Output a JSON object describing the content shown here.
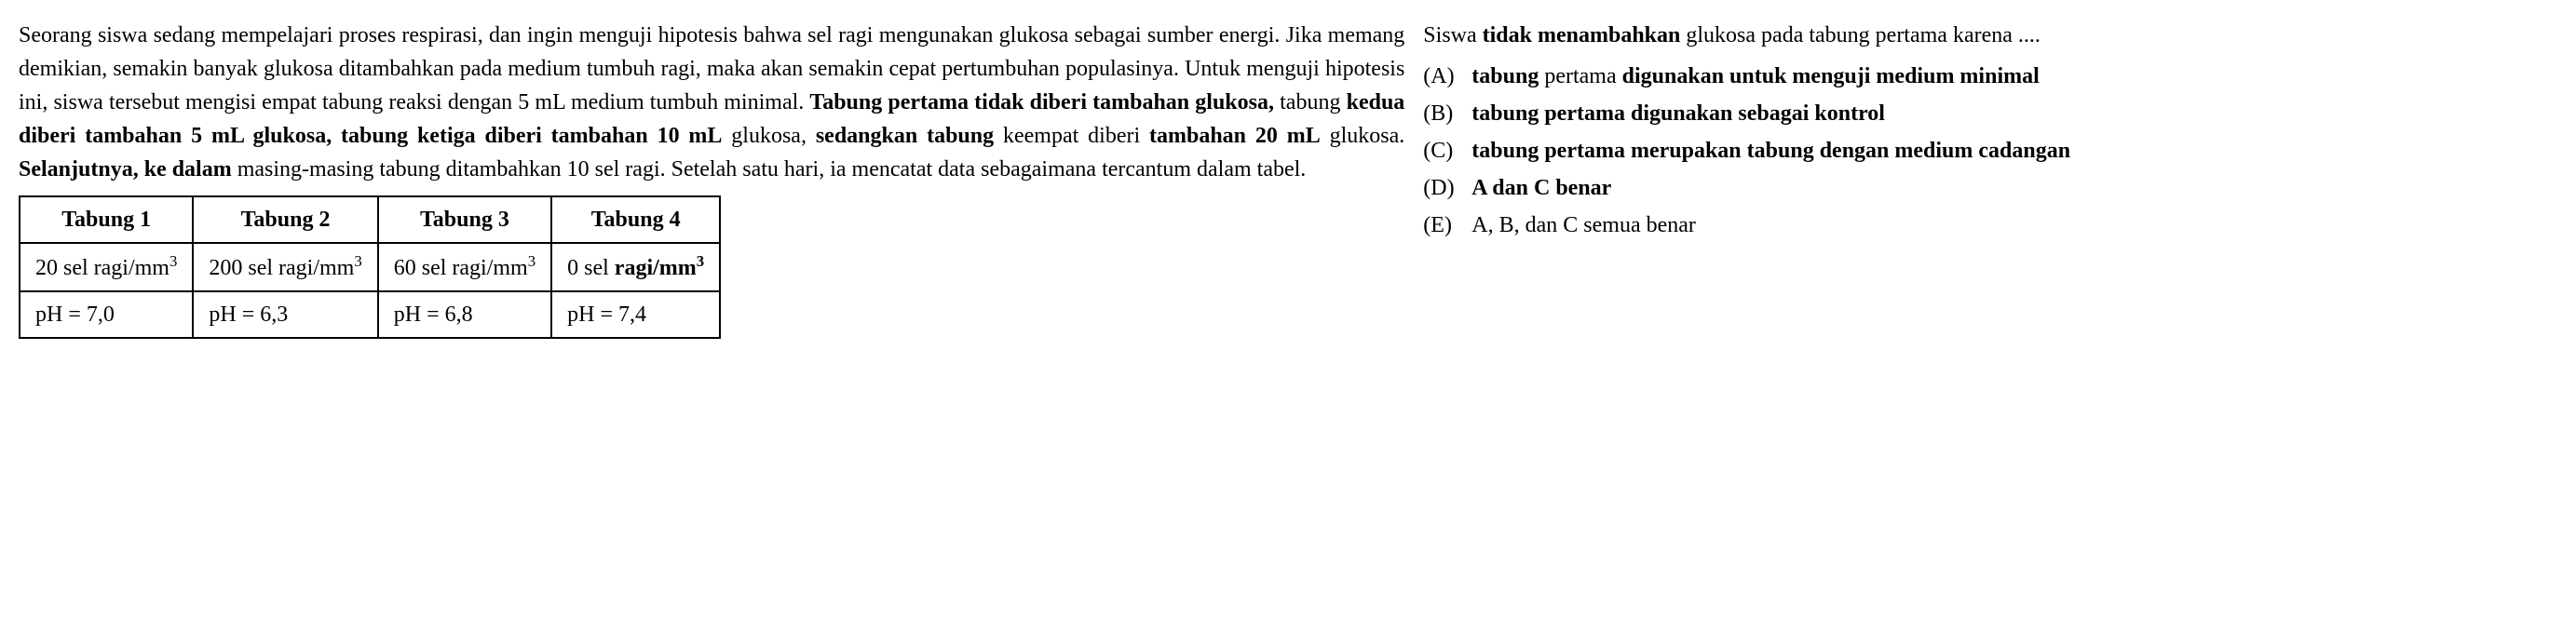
{
  "left": {
    "paragraph_html": "Seorang siswa sedang mempelajari proses respirasi, dan ingin menguji hipotesis bahwa sel ragi mengunakan glukosa sebagai sumber energi. Jika memang demikian, semakin banyak glukosa ditambahkan pada medium tumbuh ragi, maka akan semakin cepat pertumbuhan populasinya. Untuk menguji hipotesis ini, siswa tersebut mengisi empat tabung reaksi dengan 5 mL medium tumbuh minimal. <span class=\"bold\">Tabung pertama tidak diberi tambahan glukosa,</span> tabung <span class=\"bold\">kedua diberi tambahan 5 mL glukosa, tabung ketiga diberi tambahan 10 mL</span> glukosa, <span class=\"bold\">sedangkan tabung</span> keempat diberi <span class=\"bold\">tambahan 20 mL</span> glukosa. <span class=\"bold\">Selanjutnya, ke dalam</span> masing-masing tabung ditambahkan 10 sel ragi. Setelah satu hari, ia mencatat data sebagaimana tercantum dalam tabel."
  },
  "right": {
    "stem_html": "Siswa <span class=\"bold\">tidak menambahkan</span> glukosa pada tabung pertama karena ....",
    "options": [
      {
        "letter": "(A)",
        "text_html": "<span class=\"bold\">tabung</span> pertama <span class=\"bold\">digunakan untuk menguji medium minimal</span>"
      },
      {
        "letter": "(B)",
        "text_html": "<span class=\"bold\">tabung pertama digunakan sebagai kontrol</span>"
      },
      {
        "letter": "(C)",
        "text_html": "<span class=\"bold\">tabung pertama merupakan tabung dengan medium cadangan</span>"
      },
      {
        "letter": "(D)",
        "text_html": "<span class=\"bold\">A dan C benar</span>"
      },
      {
        "letter": "(E)",
        "text_html": "A, B, dan C semua benar"
      }
    ]
  },
  "table": {
    "headers": [
      "Tabung 1",
      "Tabung 2",
      "Tabung 3",
      "Tabung 4"
    ],
    "rows": [
      [
        "20 sel ragi/mm<sup>3</sup>",
        "200 sel ragi/mm<sup>3</sup>",
        "60 sel ragi/mm<sup>3</sup>",
        "0 sel <span class=\"bold\">ragi/mm<sup>3</sup></span>"
      ],
      [
        "pH = 7,0",
        "pH = 6,3",
        "pH = 6,8",
        "pH = 7,4"
      ]
    ],
    "border_color": "#000000",
    "font_size": 24
  },
  "style": {
    "font_family": "Times New Roman",
    "font_size": 24,
    "text_color": "#000000",
    "background_color": "#ffffff"
  }
}
